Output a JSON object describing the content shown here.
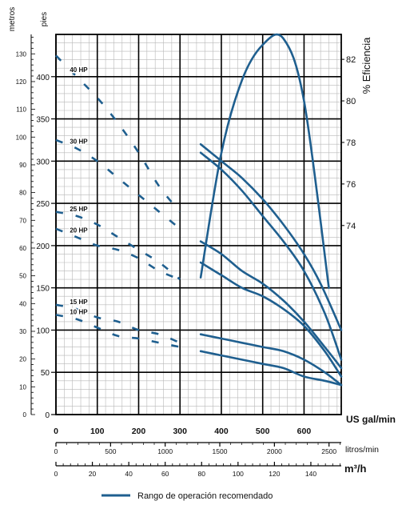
{
  "chart_data": {
    "type": "line",
    "title": "",
    "axes": {
      "left_outer": {
        "label": "metros",
        "ticks": [
          0,
          10,
          20,
          30,
          40,
          50,
          60,
          70,
          80,
          90,
          100,
          110,
          120,
          130
        ],
        "range": [
          0,
          137
        ]
      },
      "left_inner": {
        "label": "pies",
        "ticks": [
          0,
          50,
          100,
          150,
          200,
          250,
          300,
          350,
          400
        ],
        "range": [
          0,
          450
        ]
      },
      "right": {
        "label": "% Eficiencia",
        "ticks": [
          74,
          76,
          78,
          80,
          82
        ],
        "range": [
          64.9,
          83.2
        ]
      },
      "bottom_gpm": {
        "label": "US gal/min",
        "ticks": [
          0,
          100,
          200,
          300,
          400,
          500,
          600
        ],
        "range": [
          0,
          690
        ]
      },
      "bottom_lpm": {
        "label": "litros/min",
        "ticks": [
          0,
          500,
          1000,
          1500,
          2000,
          2500
        ],
        "range": [
          0,
          2612
        ]
      },
      "bottom_m3h": {
        "label": "m³/h",
        "ticks": [
          0,
          20,
          40,
          60,
          80,
          100,
          120,
          140
        ],
        "range": [
          0,
          156.7
        ]
      }
    },
    "x_unit": "US gal/min",
    "y_unit": "pies",
    "grid": true,
    "series": [
      {
        "name": "40 HP",
        "dashed": {
          "x": [
            0,
            50,
            100,
            150,
            200,
            250,
            300
          ],
          "y": [
            425,
            400,
            375,
            345,
            310,
            270,
            240
          ]
        },
        "solid": {
          "x": [
            350,
            400,
            450,
            500,
            550,
            600,
            640,
            690
          ],
          "y": [
            320,
            300,
            280,
            255,
            225,
            190,
            155,
            100
          ]
        }
      },
      {
        "name": "30 HP",
        "dashed": {
          "x": [
            0,
            50,
            100,
            150,
            200,
            250,
            300
          ],
          "y": [
            325,
            315,
            300,
            280,
            260,
            240,
            220
          ]
        },
        "solid": {
          "x": [
            350,
            400,
            450,
            500,
            550,
            600,
            650,
            690
          ],
          "y": [
            310,
            290,
            265,
            235,
            205,
            170,
            120,
            65
          ]
        }
      },
      {
        "name": "25 HP",
        "dashed": {
          "x": [
            0,
            50,
            100,
            150,
            200,
            250,
            300
          ],
          "y": [
            240,
            235,
            225,
            210,
            195,
            180,
            160
          ]
        },
        "solid": {
          "x": [
            350,
            400,
            450,
            500,
            550,
            600,
            650,
            690
          ],
          "y": [
            205,
            190,
            170,
            155,
            135,
            110,
            80,
            55
          ]
        }
      },
      {
        "name": "20 HP",
        "dashed": {
          "x": [
            0,
            50,
            100,
            150,
            200,
            250,
            300
          ],
          "y": [
            220,
            210,
            200,
            195,
            185,
            170,
            160
          ]
        },
        "solid": {
          "x": [
            350,
            400,
            450,
            500,
            550,
            600,
            650,
            690
          ],
          "y": [
            180,
            165,
            150,
            140,
            125,
            105,
            75,
            45
          ]
        }
      },
      {
        "name": "15 HP",
        "dashed": {
          "x": [
            0,
            50,
            100,
            150,
            200,
            250,
            300
          ],
          "y": [
            130,
            125,
            115,
            110,
            100,
            95,
            85
          ]
        },
        "solid": {
          "x": [
            350,
            400,
            450,
            500,
            550,
            600,
            650,
            690
          ],
          "y": [
            95,
            90,
            85,
            80,
            75,
            65,
            50,
            35
          ]
        }
      },
      {
        "name": "10 HP",
        "dashed": {
          "x": [
            0,
            50,
            100,
            150,
            200,
            250,
            300
          ],
          "y": [
            118,
            113,
            103,
            93,
            90,
            85,
            80
          ]
        },
        "solid": {
          "x": [
            350,
            400,
            450,
            500,
            550,
            600,
            650,
            690
          ],
          "y": [
            75,
            70,
            65,
            60,
            55,
            45,
            40,
            35
          ]
        }
      }
    ],
    "efficiency": {
      "name": "% Eficiencia",
      "x": [
        350,
        400,
        450,
        500,
        550,
        600,
        660
      ],
      "y": [
        71.5,
        77.5,
        81.0,
        82.7,
        83.0,
        80.0,
        71.0
      ]
    },
    "legend": {
      "label": "Rango de operación recomendado",
      "position": "bottom-center"
    },
    "colors": {
      "curve": "#1f5f8f",
      "grid_major": "#000000",
      "grid_minor": "#b8b8b8"
    }
  }
}
